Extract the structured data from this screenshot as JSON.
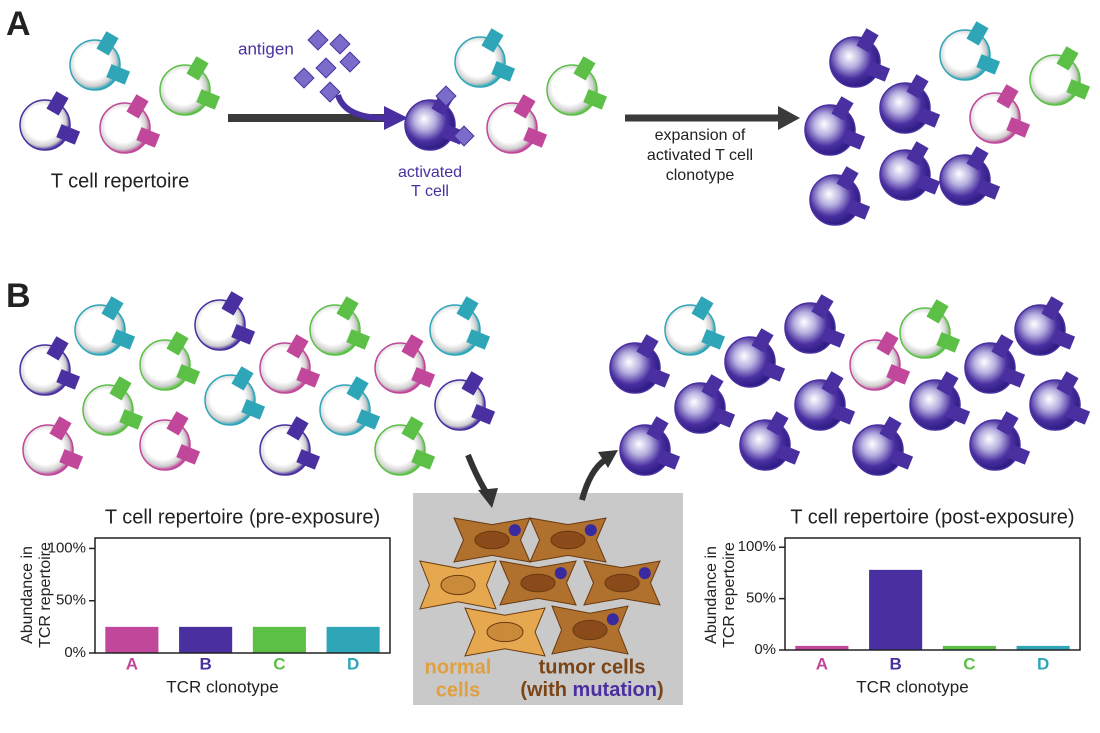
{
  "panel_a": {
    "label": "A",
    "antigen": "antigen",
    "repertoire": "T cell repertoire",
    "activated": [
      "activated",
      "T cell"
    ],
    "expansion": [
      "expansion of",
      "activated T cell",
      "clonotype"
    ]
  },
  "panel_b": {
    "label": "B",
    "normal_cells": [
      "normal",
      "cells"
    ],
    "tumor_cells": "tumor cells",
    "mutation_note": [
      "(with ",
      "mutation",
      ")"
    ]
  },
  "chart_data": [
    {
      "type": "bar",
      "title": "T cell repertoire (pre-exposure)",
      "y_label": [
        "Abundance in",
        "TCR repertoire"
      ],
      "x_label": "TCR clonotype",
      "categories": [
        "A",
        "B",
        "C",
        "D"
      ],
      "colors": [
        "#c0479a",
        "#4a2fa0",
        "#5cc047",
        "#2fa6b8"
      ],
      "values": [
        25,
        25,
        25,
        25
      ],
      "ylim": [
        0,
        110
      ],
      "yticks": [
        {
          "value": 0,
          "label": "0%"
        },
        {
          "value": 50,
          "label": "50%"
        },
        {
          "value": 100,
          "label": "100%"
        }
      ]
    },
    {
      "type": "bar",
      "title": "T cell repertoire (post-exposure)",
      "y_label": [
        "Abundance in",
        "TCR repertoire"
      ],
      "x_label": "TCR clonotype",
      "categories": [
        "A",
        "B",
        "C",
        "D"
      ],
      "colors": [
        "#c0479a",
        "#4a2fa0",
        "#5cc047",
        "#2fa6b8"
      ],
      "values": [
        4,
        78,
        4,
        4
      ],
      "ylim": [
        0,
        109
      ],
      "yticks": [
        {
          "value": 0,
          "label": "0%"
        },
        {
          "value": 50,
          "label": "50%"
        },
        {
          "value": 100,
          "label": "100%"
        }
      ]
    }
  ]
}
